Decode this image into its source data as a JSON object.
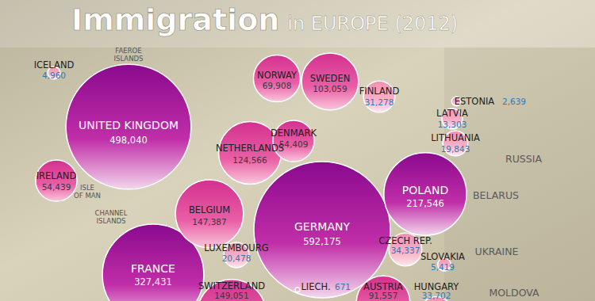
{
  "chart_data": {
    "type": "bubble",
    "title": "Immigration",
    "subtitle": "in EUROPE (2012)",
    "categories": [
      "UNITED KINGDOM",
      "GERMANY",
      "FRANCE",
      "POLAND",
      "BELGIUM",
      "NETHERLANDS",
      "SWEDEN",
      "NORWAY",
      "DENMARK",
      "IRELAND",
      "FINLAND",
      "LUXEMBOURG",
      "CZECH REP.",
      "SLOVAKIA",
      "LITHUANIA",
      "LATVIA",
      "ESTONIA",
      "ICELAND",
      "LIECH.",
      "SWITZERLAND",
      "AUSTRIA",
      "HUNGARY"
    ],
    "values": [
      498040,
      592175,
      327431,
      217546,
      147387,
      124566,
      103059,
      69908,
      54409,
      54439,
      31278,
      20478,
      34337,
      5419,
      19843,
      13303,
      2639,
      4960,
      671,
      149051,
      91557,
      33702
    ],
    "value_labels": [
      "498,040",
      "592,175",
      "327,431",
      "217,546",
      "147,387",
      "124,566",
      "103,059",
      "69,908",
      "54,409",
      "54,439",
      "31,278",
      "20,478",
      "34,337",
      "5,419",
      "19,843",
      "13,303",
      "2,639",
      "4,960",
      "671",
      "149,051",
      "91,557",
      "33,702"
    ],
    "data_labels": true,
    "annotations": [
      "FAEROE ISLANDS",
      "ISLE OF MAN",
      "CHANNEL ISLANDS",
      "RUSSIA",
      "BELARUS",
      "UKRAINE",
      "MOLDOVA"
    ]
  }
}
